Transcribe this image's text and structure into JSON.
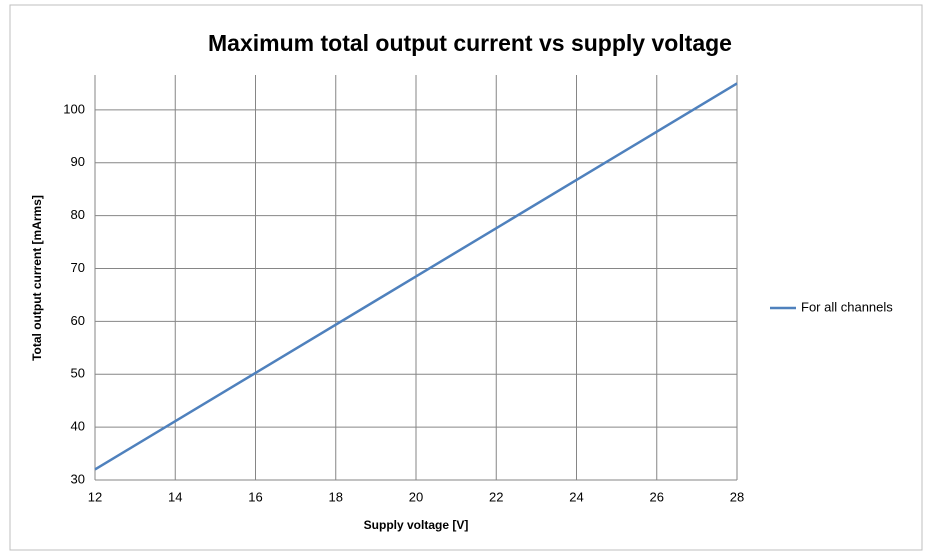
{
  "chart_data": {
    "type": "line",
    "title": "Maximum total output current vs supply voltage",
    "xlabel": "Supply voltage [V]",
    "ylabel": "Total output current [mArms]",
    "x": [
      12,
      16,
      20,
      24,
      28
    ],
    "series": [
      {
        "name": "For all channels",
        "color": "#4f81bd",
        "values": [
          32,
          50.25,
          68.5,
          86.75,
          105
        ]
      }
    ],
    "xlim": [
      12,
      28
    ],
    "xticks": [
      12,
      14,
      16,
      18,
      20,
      22,
      24,
      26,
      28
    ],
    "ylim": [
      30,
      106.6
    ],
    "yticks": [
      30,
      40,
      50,
      60,
      70,
      80,
      90,
      100
    ],
    "grid": true,
    "legend": "right"
  }
}
